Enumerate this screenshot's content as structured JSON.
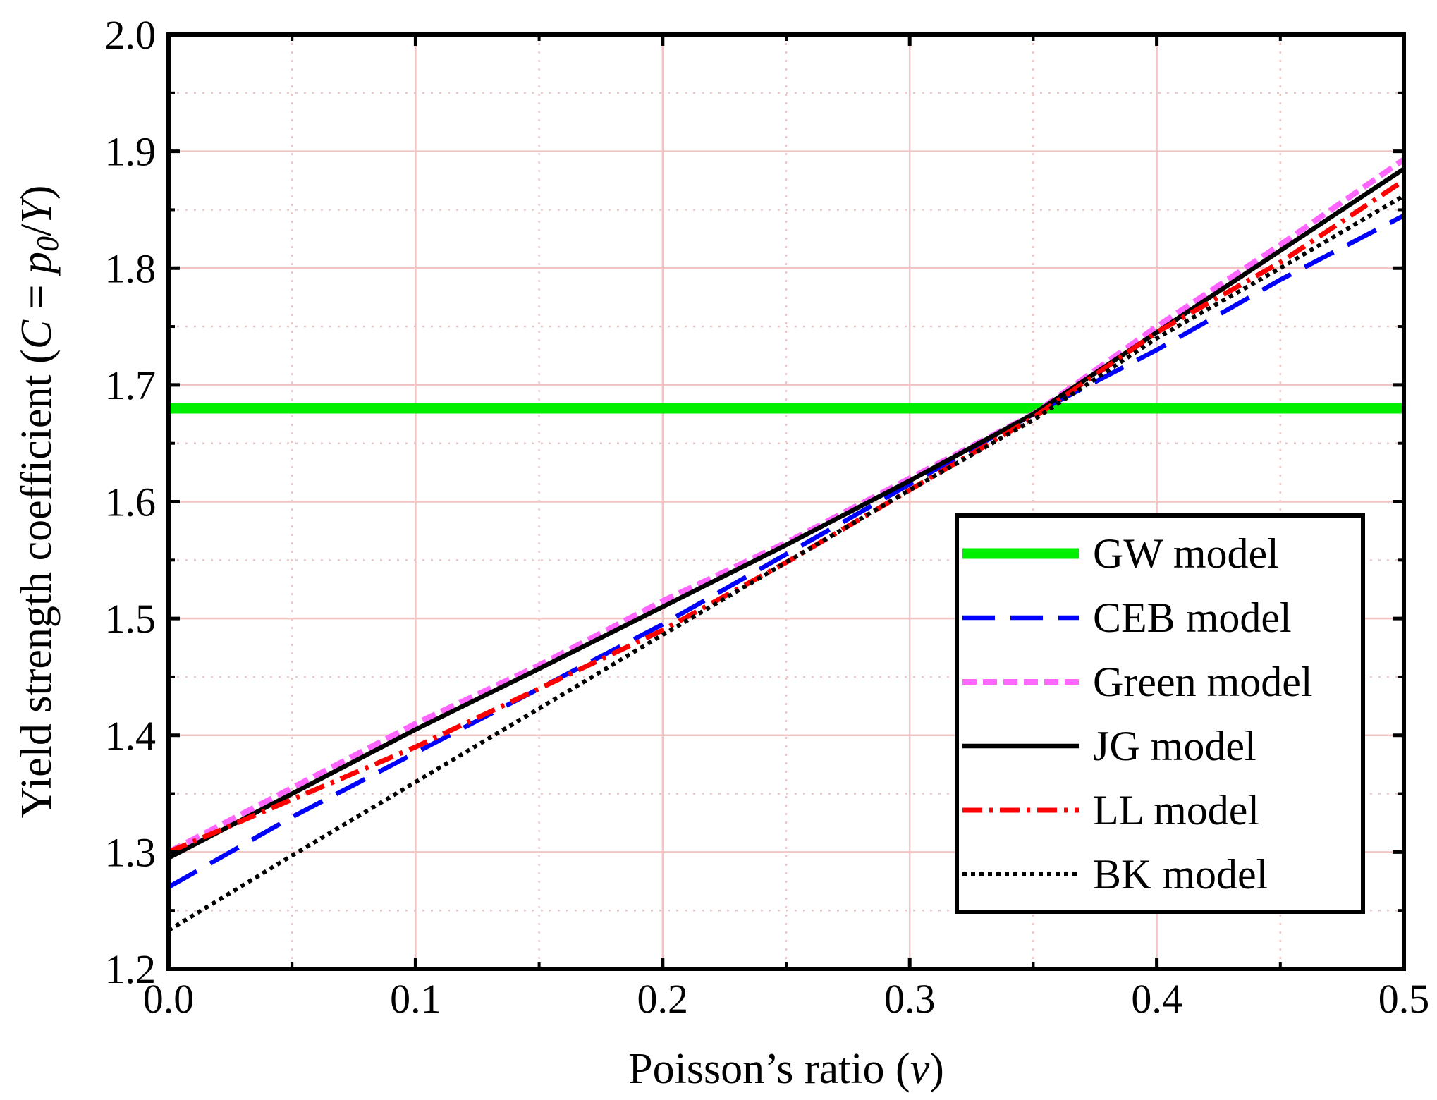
{
  "chart_data": {
    "type": "line",
    "title": "",
    "xlabel": "Poisson’s ratio (ν)",
    "xlabel_parts": {
      "prefix": "Poisson’s ratio (",
      "symbol": "ν",
      "suffix": ")"
    },
    "ylabel": "Yield strength coefficient (C = p0/Y)",
    "ylabel_parts": {
      "prefix": "Yield strength coefficient (",
      "c": "C",
      "eq": " = ",
      "p": "p",
      "sub": "0",
      "slash": "/",
      "y": "Y",
      "suffix": ")"
    },
    "xlim": [
      0.0,
      0.5
    ],
    "ylim": [
      1.2,
      2.0
    ],
    "xticks": [
      "0.0",
      "0.1",
      "0.2",
      "0.3",
      "0.4",
      "0.5"
    ],
    "yticks": [
      "1.2",
      "1.3",
      "1.4",
      "1.5",
      "1.6",
      "1.7",
      "1.8",
      "1.9",
      "2.0"
    ],
    "grid": true,
    "legend_position": "bottom-right",
    "x": [
      0.0,
      0.05,
      0.1,
      0.15,
      0.2,
      0.25,
      0.3,
      0.35,
      0.4,
      0.45,
      0.5
    ],
    "series": [
      {
        "name": "GW model",
        "color": "#00ee00",
        "style": "solid-thick",
        "values": [
          1.68,
          1.68,
          1.68,
          1.68,
          1.68,
          1.68,
          1.68,
          1.68,
          1.68,
          1.68,
          1.68
        ]
      },
      {
        "name": "CEB model",
        "color": "#0000ff",
        "style": "dash",
        "values": [
          1.27,
          1.33,
          1.385,
          1.44,
          1.495,
          1.555,
          1.615,
          1.675,
          1.73,
          1.79,
          1.845
        ]
      },
      {
        "name": "Green model",
        "color": "#ff66ff",
        "style": "short-dash",
        "values": [
          1.3,
          1.355,
          1.41,
          1.46,
          1.515,
          1.565,
          1.62,
          1.675,
          1.75,
          1.82,
          1.893
        ]
      },
      {
        "name": "JG model",
        "color": "#000000",
        "style": "solid",
        "values": [
          1.295,
          1.35,
          1.405,
          1.457,
          1.51,
          1.563,
          1.618,
          1.675,
          1.745,
          1.815,
          1.885
        ]
      },
      {
        "name": "LL model",
        "color": "#ff0000",
        "style": "dash-dot",
        "values": [
          1.3,
          1.345,
          1.39,
          1.44,
          1.49,
          1.548,
          1.61,
          1.672,
          1.745,
          1.805,
          1.875
        ]
      },
      {
        "name": "BK model",
        "color": "#000000",
        "style": "dot",
        "values": [
          1.233,
          1.297,
          1.36,
          1.423,
          1.486,
          1.548,
          1.61,
          1.67,
          1.74,
          1.8,
          1.862
        ]
      }
    ]
  }
}
